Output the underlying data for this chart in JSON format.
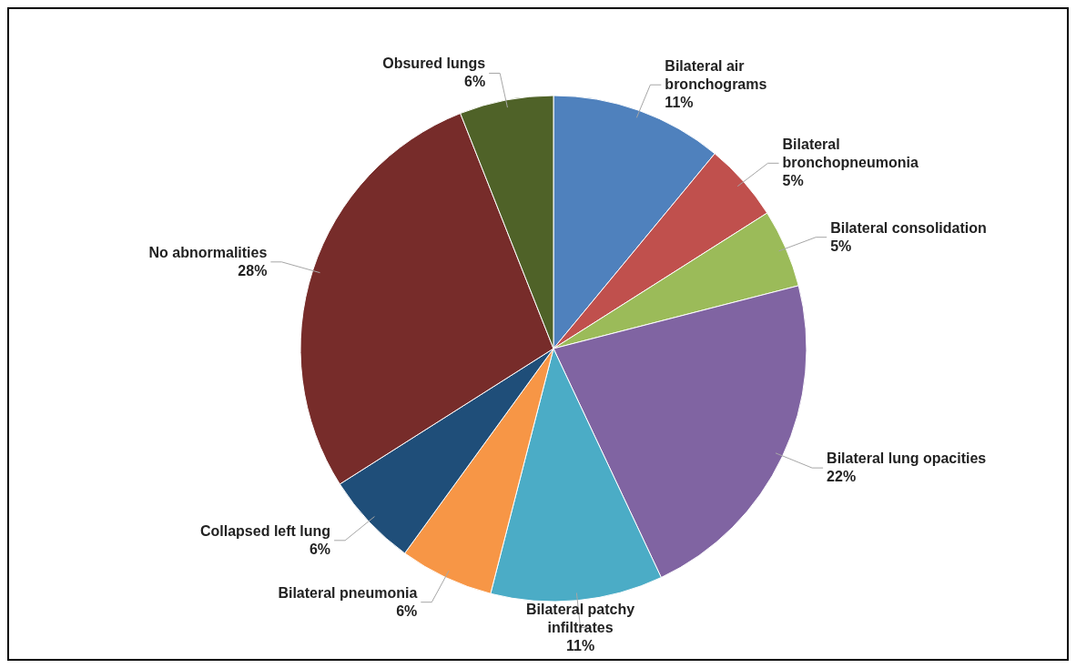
{
  "chart_data": {
    "type": "pie",
    "categories": [
      "Bilateral air bronchograms",
      "Bilateral bronchopneumonia",
      "Bilateral consolidation",
      "Bilateral lung opacities",
      "Bilateral patchy infiltrates",
      "Bilateral pneumonia",
      "Collapsed left lung",
      "No abnormalities",
      "Obsured lungs"
    ],
    "values": [
      11,
      5,
      5,
      22,
      11,
      6,
      6,
      28,
      6
    ],
    "value_labels": [
      "11%",
      "5%",
      "5%",
      "22%",
      "11%",
      "6%",
      "6%",
      "28%",
      "6%"
    ],
    "colors": [
      "#4f81bd",
      "#c0504d",
      "#9bbb59",
      "#8064a2",
      "#4bacc6",
      "#f79646",
      "#1f4e79",
      "#772c2a",
      "#4f6228"
    ],
    "legend": false
  }
}
